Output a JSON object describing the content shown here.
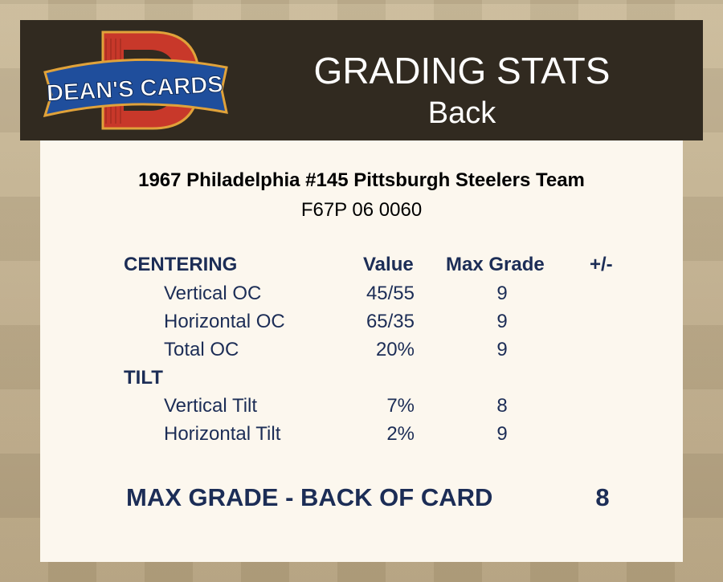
{
  "header": {
    "logo_text": "DEAN'S CARDS",
    "title": "GRADING STATS",
    "subtitle": "Back"
  },
  "card": {
    "name": "1967 Philadelphia #145  Pittsburgh Steelers Team",
    "code": "F67P 06 0060"
  },
  "columns": {
    "value": "Value",
    "max_grade": "Max Grade",
    "plus_minus": "+/-"
  },
  "centering": {
    "heading": "CENTERING",
    "rows": [
      {
        "label": "Vertical OC",
        "value": "45/55",
        "max_grade": "9"
      },
      {
        "label": "Horizontal OC",
        "value": "65/35",
        "max_grade": "9"
      },
      {
        "label": "Total OC",
        "value": "20%",
        "max_grade": "9"
      }
    ]
  },
  "tilt": {
    "heading": "TILT",
    "rows": [
      {
        "label": "Vertical Tilt",
        "value": "7%",
        "max_grade": "8"
      },
      {
        "label": "Horizontal Tilt",
        "value": "2%",
        "max_grade": "9"
      }
    ]
  },
  "summary": {
    "label": "MAX GRADE - BACK OF CARD",
    "value": "8"
  },
  "colors": {
    "header_bg": "#312a20",
    "panel_bg": "#fcf7ee",
    "text_navy": "#1c2d56",
    "logo_red": "#c8382a",
    "logo_blue": "#1f4e9c"
  }
}
